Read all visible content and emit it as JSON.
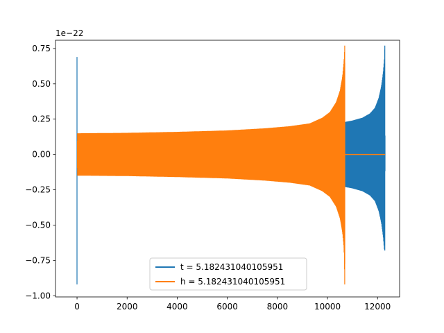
{
  "chart_data": {
    "type": "line",
    "title": "",
    "xlabel": "",
    "ylabel": "",
    "y_offset_label": "1e−22",
    "xlim": [
      -860,
      12880
    ],
    "ylim": [
      -1.0085,
      0.8085
    ],
    "xticks": [
      0,
      2000,
      4000,
      6000,
      8000,
      10000,
      12000
    ],
    "xtick_labels": [
      "0",
      "2000",
      "4000",
      "6000",
      "8000",
      "10000",
      "12000"
    ],
    "yticks": [
      -1.0,
      -0.75,
      -0.5,
      -0.25,
      0.0,
      0.25,
      0.5,
      0.75
    ],
    "ytick_labels": [
      "−1.00",
      "−0.75",
      "−0.50",
      "−0.25",
      "0.00",
      "0.25",
      "0.50",
      "0.75"
    ],
    "grid": false,
    "legend_position": "lower center",
    "series": [
      {
        "name": "t = 5.182431040105951",
        "color": "#1f77b4",
        "description": "chirp waveform; envelope samples (x, upper, lower)",
        "envelope": [
          [
            0,
            0.69,
            -0.92
          ],
          [
            10,
            0.0,
            0.0
          ],
          [
            10640,
            0.0,
            0.0
          ],
          [
            10700,
            0.23,
            -0.23
          ],
          [
            11000,
            0.24,
            -0.24
          ],
          [
            11400,
            0.26,
            -0.26
          ],
          [
            11700,
            0.29,
            -0.29
          ],
          [
            11900,
            0.33,
            -0.33
          ],
          [
            12050,
            0.4,
            -0.4
          ],
          [
            12150,
            0.48,
            -0.48
          ],
          [
            12220,
            0.57,
            -0.57
          ],
          [
            12270,
            0.67,
            -0.67
          ],
          [
            12290,
            0.77,
            -0.68
          ],
          [
            12300,
            0.0,
            0.0
          ]
        ]
      },
      {
        "name": "h = 5.182431040105951",
        "color": "#ff7f0e",
        "description": "chirp waveform; envelope samples (x, upper, lower)",
        "envelope": [
          [
            0,
            0.0,
            0.0
          ],
          [
            20,
            0.15,
            -0.15
          ],
          [
            2000,
            0.153,
            -0.153
          ],
          [
            4000,
            0.16,
            -0.16
          ],
          [
            6000,
            0.17,
            -0.17
          ],
          [
            7500,
            0.185,
            -0.185
          ],
          [
            8500,
            0.2,
            -0.2
          ],
          [
            9300,
            0.22,
            -0.22
          ],
          [
            9800,
            0.26,
            -0.26
          ],
          [
            10100,
            0.3,
            -0.3
          ],
          [
            10350,
            0.37,
            -0.37
          ],
          [
            10500,
            0.45,
            -0.45
          ],
          [
            10600,
            0.55,
            -0.55
          ],
          [
            10660,
            0.66,
            -0.66
          ],
          [
            10690,
            0.77,
            -0.92
          ],
          [
            10700,
            0.0,
            0.0
          ],
          [
            12300,
            0.0,
            0.0
          ]
        ]
      }
    ]
  }
}
